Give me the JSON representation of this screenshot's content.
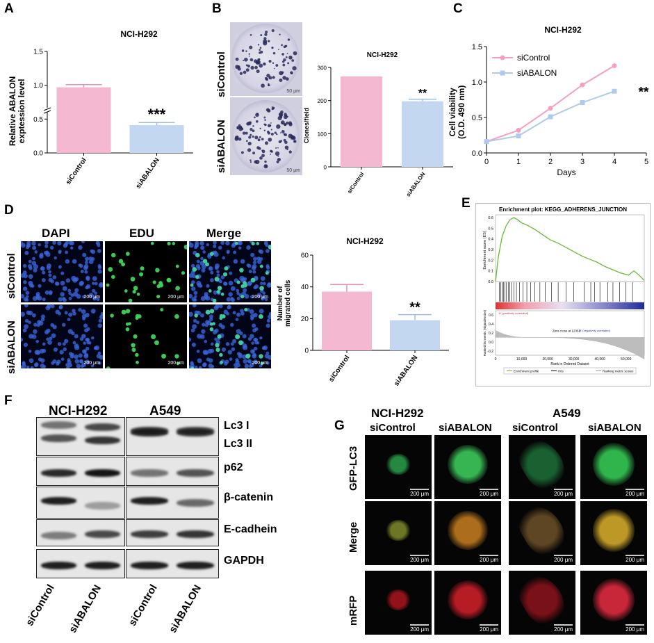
{
  "panels": {
    "a": "A",
    "b": "B",
    "c": "C",
    "d": "D",
    "e": "E",
    "f": "F",
    "g": "G"
  },
  "panelA": {
    "title": "NCI-H292",
    "ylabel_line1": "Relative ABALON",
    "ylabel_line2": "exptession level",
    "significance": "***",
    "chart_data": {
      "type": "bar",
      "categories": [
        "siControl",
        "siABALON"
      ],
      "values": [
        0.97,
        0.41
      ],
      "errors": [
        0.04,
        0.04
      ],
      "ylim": [
        0,
        1.5
      ],
      "yticks": [
        "0.0",
        "0.5",
        "1.0",
        "1.5"
      ],
      "colors": [
        "#f4b8d1",
        "#c3d7f0"
      ]
    }
  },
  "panelB": {
    "title": "NCI-H292",
    "ylabel": "Clones/field",
    "row1": "siControl",
    "row2": "siABALON",
    "scale1": "50 μm",
    "scale2": "50 μm",
    "significance": "**",
    "chart_data": {
      "type": "bar",
      "categories": [
        "siControl",
        "siABALON"
      ],
      "values": [
        273,
        198
      ],
      "errors": [
        0,
        6
      ],
      "ylim": [
        0,
        300
      ],
      "yticks": [
        "0",
        "100",
        "200",
        "300"
      ],
      "colors": [
        "#f4b8d1",
        "#c3d7f0"
      ]
    }
  },
  "panelC": {
    "title": "NCI-H292",
    "ylabel_line1": "Cell viability",
    "ylabel_line2": "(O.D. 490 nm)",
    "xlabel": "Days",
    "significance": "**",
    "chart_data": {
      "type": "line",
      "x": [
        0,
        1,
        2,
        3,
        4
      ],
      "series": [
        {
          "name": "siControl",
          "values": [
            0.16,
            0.32,
            0.63,
            0.96,
            1.23
          ],
          "color": "#f4a0c0"
        },
        {
          "name": "siABALON",
          "values": [
            0.16,
            0.24,
            0.51,
            0.71,
            0.87
          ],
          "color": "#aecbec"
        }
      ],
      "xlim": [
        0,
        5
      ],
      "ylim": [
        0,
        1.5
      ],
      "xticks": [
        "0",
        "1",
        "2",
        "3",
        "4",
        "5"
      ],
      "yticks": [
        "0.0",
        "0.5",
        "1.0",
        "1.5"
      ]
    }
  },
  "panelD": {
    "col1": "DAPI",
    "col2": "EDU",
    "col3": "Merge",
    "row1": "siControl",
    "row2": "siABALON",
    "scale": "200 μm",
    "title": "NCI-H292",
    "ylabel_line1": "Number of",
    "ylabel_line2": "migrated cells",
    "significance": "**",
    "chart_data": {
      "type": "bar",
      "categories": [
        "siControl",
        "siABALON"
      ],
      "values": [
        37,
        19
      ],
      "errors": [
        4.5,
        3.5
      ],
      "ylim": [
        0,
        60
      ],
      "yticks": [
        "0",
        "20",
        "40",
        "60"
      ],
      "colors": [
        "#f4b8d1",
        "#c3d7f0"
      ]
    }
  },
  "panelE": {
    "title": "Enrichment plot: KEGG_ADHERENS_JUNCTION",
    "ylabel_top": "Enrichment score (ES)",
    "ylabel_bottom": "Ranked list metric (Signal2Noise)",
    "pos_label": "'A' (positively correlated)",
    "neg_label": "'B' (negatively correlated)",
    "zero_cross": "Zero cross at 12351",
    "xlabel": "Rank in Ordered Dataset",
    "legend": [
      "Enrichment profile",
      "Hits",
      "Ranking metric scores"
    ],
    "chart_data": {
      "type": "line",
      "x": [
        0,
        1000,
        2500,
        4000,
        5500,
        7000,
        8500,
        10000,
        12000,
        15000,
        18000,
        21000,
        24000,
        27000,
        30000,
        33000,
        36000,
        39000,
        42000,
        45000,
        48000,
        51000,
        53000,
        55000,
        57000
      ],
      "series": [
        {
          "name": "Enrichment profile",
          "values": [
            0.0,
            0.22,
            0.42,
            0.52,
            0.58,
            0.6,
            0.58,
            0.55,
            0.53,
            0.49,
            0.44,
            0.39,
            0.36,
            0.32,
            0.28,
            0.24,
            0.21,
            0.18,
            0.14,
            0.11,
            0.08,
            0.06,
            0.1,
            0.06,
            0.01
          ]
        }
      ],
      "xlim": [
        0,
        57000
      ],
      "ylim": [
        0,
        0.6
      ],
      "yticks": [
        "0.0",
        "0.1",
        "0.2",
        "0.3",
        "0.4",
        "0.5",
        "0.6"
      ],
      "xticks": [
        "0",
        "10,000",
        "20,000",
        "30,000",
        "40,000",
        "50,000"
      ],
      "yticks_bottom": [
        "0.6",
        "0.4",
        "0.2",
        "0.0",
        "-0.2"
      ]
    }
  },
  "panelF": {
    "header1": "NCI-H292",
    "header2": "A549",
    "labels": [
      "Lc3 I",
      "Lc3 II",
      "p62",
      "β-catenin",
      "E-cadhein",
      "GAPDH"
    ],
    "lanes": [
      "siControl",
      "siABALON",
      "siControl",
      "siABALON"
    ]
  },
  "panelG": {
    "header1": "NCI-H292",
    "header2": "A549",
    "sub": [
      "siControl",
      "siABALON",
      "siControl",
      "siABALON"
    ],
    "rows": [
      "GFP-LC3",
      "Merge",
      "mRFP"
    ],
    "scale": "200 μm"
  }
}
